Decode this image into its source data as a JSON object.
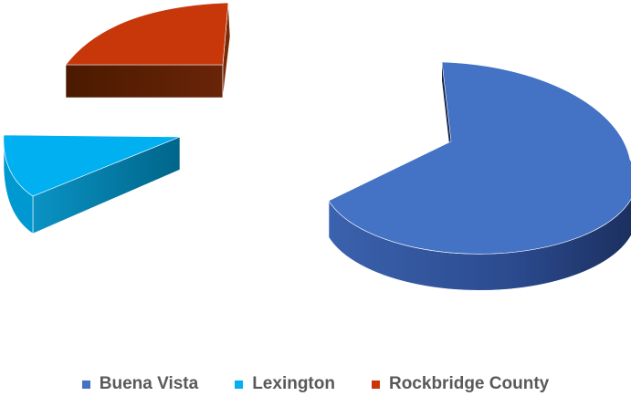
{
  "chart_data": {
    "type": "pie",
    "style": "3d-exploded",
    "title": "",
    "slices": [
      {
        "label": "Buena Vista",
        "value": 63,
        "color": "#4472C4",
        "side_color": "#2B4A8E"
      },
      {
        "label": "Lexington",
        "value": 14,
        "color": "#00B0F0",
        "side_color": "#00708F"
      },
      {
        "label": "Rockbridge County",
        "value": 23,
        "color": "#C8370A",
        "side_color": "#5A1A00"
      }
    ],
    "legend": {
      "position": "bottom"
    }
  }
}
